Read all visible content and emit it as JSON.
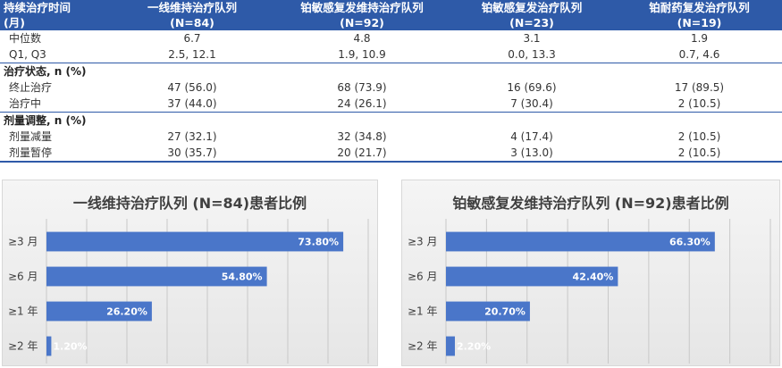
{
  "table": {
    "header": [
      {
        "line1": "持续治疗时间",
        "line2": "(月)"
      },
      {
        "line1": "一线维持治疗队列",
        "line2": "(N=84)"
      },
      {
        "line1": "铂敏感复发维持治疗队列",
        "line2": "(N=92)"
      },
      {
        "line1": "铂敏感复发治疗队列",
        "line2": "(N=23)"
      },
      {
        "line1": "铂耐药复发治疗队列",
        "line2": "(N=19)"
      }
    ],
    "rows_top": [
      {
        "label": "中位数",
        "values": [
          "6.7",
          "4.8",
          "3.1",
          "1.9"
        ]
      },
      {
        "label": "Q1, Q3",
        "values": [
          "2.5, 12.1",
          "1.9, 10.9",
          "0.0, 13.3",
          "0.7, 4.6"
        ]
      }
    ],
    "section_status": {
      "title": "治疗状态, n (%)",
      "rows": [
        {
          "label": "终止治疗",
          "values": [
            "47 (56.0)",
            "68 (73.9)",
            "16 (69.6)",
            "17 (89.5)"
          ]
        },
        {
          "label": "治疗中",
          "values": [
            "37 (44.0)",
            "24 (26.1)",
            "7 (30.4)",
            "2 (10.5)"
          ]
        }
      ]
    },
    "section_dose": {
      "title": "剂量调整, n (%)",
      "rows": [
        {
          "label": "剂量减量",
          "values": [
            "27 (32.1)",
            "32 (34.8)",
            "4 (17.4)",
            "2 (10.5)"
          ]
        },
        {
          "label": "剂量暂停",
          "values": [
            "30 (35.7)",
            "20 (21.7)",
            "3 (13.0)",
            "2 (10.5)"
          ]
        }
      ]
    }
  },
  "colors": {
    "header_bg": "#2e5aa8",
    "bar": "#4a76c9",
    "grid": "#c8c8c8"
  },
  "chart_data": [
    {
      "type": "bar",
      "orientation": "horizontal",
      "title": "一线维持治疗队列 (N=84)患者比例",
      "categories": [
        "≥3 月",
        "≥6 月",
        "≥1 年",
        "≥2 年"
      ],
      "values": [
        73.8,
        54.8,
        26.2,
        1.2
      ],
      "value_labels": [
        "73.80%",
        "54.80%",
        "26.20%",
        "1.20%"
      ],
      "xlim": [
        0,
        80
      ],
      "grid": true
    },
    {
      "type": "bar",
      "orientation": "horizontal",
      "title": "铂敏感复发维持治疗队列 (N=92)患者比例",
      "categories": [
        "≥3 月",
        "≥6 月",
        "≥1 年",
        "≥2 年"
      ],
      "values": [
        66.3,
        42.4,
        20.7,
        2.2
      ],
      "value_labels": [
        "66.30%",
        "42.40%",
        "20.70%",
        "2.20%"
      ],
      "xlim": [
        0,
        80
      ],
      "grid": true
    }
  ]
}
